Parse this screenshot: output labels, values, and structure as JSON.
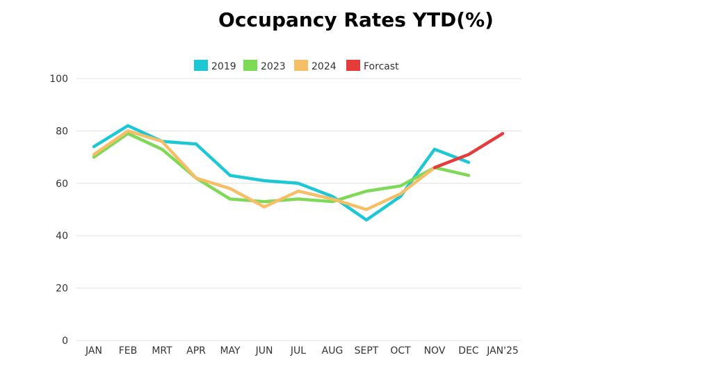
{
  "chart_data": {
    "type": "line",
    "title": "Occupancy Rates YTD(%)",
    "categories": [
      "JAN",
      "FEB",
      "MRT",
      "APR",
      "MAY",
      "JUN",
      "JUL",
      "AUG",
      "SEPT",
      "OCT",
      "NOV",
      "DEC",
      "JAN'25"
    ],
    "ylim": [
      0,
      100
    ],
    "yticks": [
      0,
      20,
      40,
      60,
      80,
      100
    ],
    "grid": true,
    "legend_position": "top-center",
    "series": [
      {
        "name": "2019",
        "color": "#1CC7D6",
        "values": [
          74,
          82,
          76,
          75,
          63,
          61,
          60,
          55,
          46,
          55,
          73,
          68,
          null
        ]
      },
      {
        "name": "2023",
        "color": "#7ED957",
        "values": [
          70,
          79,
          73,
          62,
          54,
          53,
          54,
          53,
          57,
          59,
          66,
          63,
          null
        ]
      },
      {
        "name": "2024",
        "color": "#F7BE68",
        "values": [
          71,
          80,
          76,
          62,
          58,
          51,
          57,
          54,
          50,
          56,
          66,
          null,
          null
        ]
      },
      {
        "name": "Forcast",
        "color": "#E63B3B",
        "values": [
          null,
          null,
          null,
          null,
          null,
          null,
          null,
          null,
          null,
          null,
          66,
          71,
          79
        ]
      }
    ]
  }
}
